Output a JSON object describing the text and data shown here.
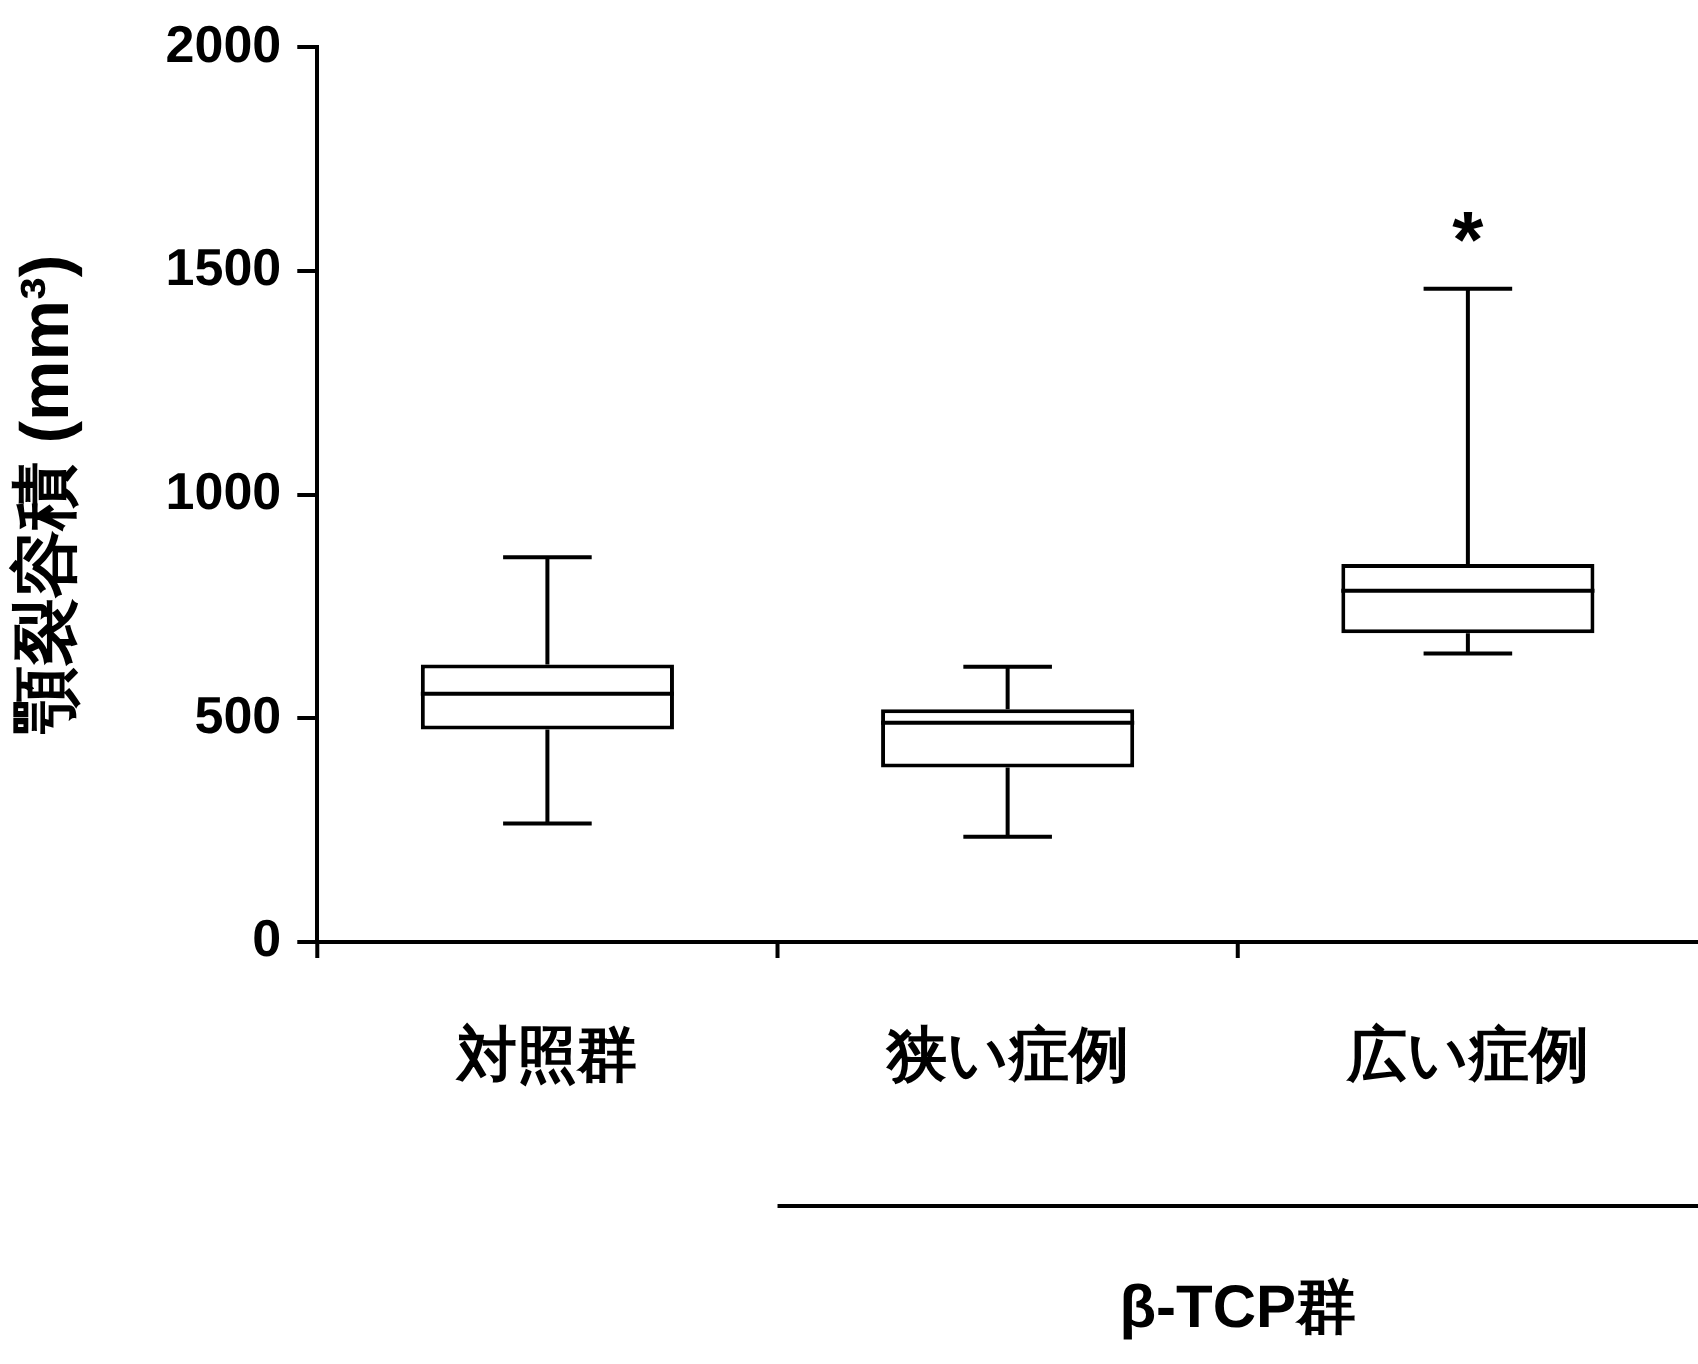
{
  "chart_data": {
    "type": "box",
    "categories": [
      "対照群",
      "狭い症例",
      "広い症例"
    ],
    "ylabel": "顎裂容積 (mm³)",
    "ylim": [
      0,
      2000
    ],
    "yticks": [
      0,
      500,
      1000,
      1500,
      2000
    ],
    "grid": false,
    "legend": false,
    "boxes": [
      {
        "low": 265,
        "q1": 475,
        "median": 555,
        "q3": 620,
        "high": 860
      },
      {
        "low": 235,
        "q1": 390,
        "median": 490,
        "q3": 520,
        "high": 615
      },
      {
        "low": 645,
        "q1": 690,
        "median": 785,
        "q3": 845,
        "high": 1460
      }
    ],
    "annotations": [
      "*",
      "β-TCP群"
    ]
  }
}
